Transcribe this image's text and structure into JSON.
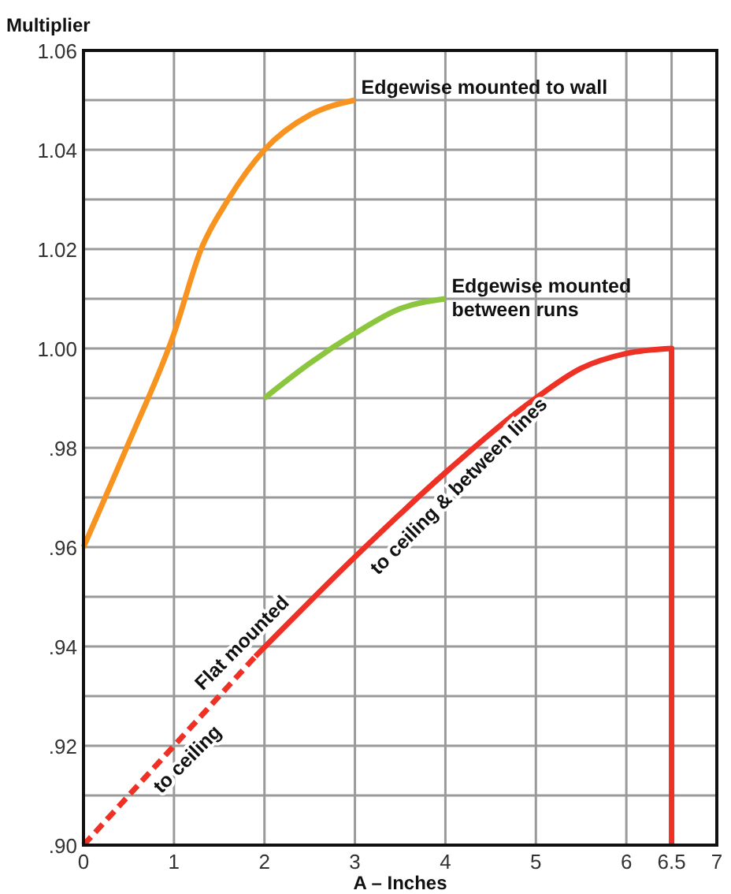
{
  "chart_data": {
    "type": "line",
    "xlabel": "A – Inches",
    "ylabel": "Multiplier",
    "xlim": [
      0,
      7
    ],
    "ylim": [
      0.9,
      1.06
    ],
    "xticks": [
      0,
      1,
      2,
      3,
      4,
      5,
      6,
      6.5,
      7
    ],
    "yticks": [
      {
        "value": 0.9,
        "label": ".90"
      },
      {
        "value": 0.91,
        "label": null
      },
      {
        "value": 0.92,
        "label": ".92"
      },
      {
        "value": 0.93,
        "label": null
      },
      {
        "value": 0.94,
        "label": ".94"
      },
      {
        "value": 0.95,
        "label": null
      },
      {
        "value": 0.96,
        "label": ".96"
      },
      {
        "value": 0.97,
        "label": null
      },
      {
        "value": 0.98,
        "label": ".98"
      },
      {
        "value": 0.99,
        "label": null
      },
      {
        "value": 1.0,
        "label": "1.00"
      },
      {
        "value": 1.01,
        "label": null
      },
      {
        "value": 1.02,
        "label": "1.02"
      },
      {
        "value": 1.03,
        "label": null
      },
      {
        "value": 1.04,
        "label": "1.04"
      },
      {
        "value": 1.05,
        "label": null
      },
      {
        "value": 1.06,
        "label": "1.06"
      }
    ],
    "grid": true,
    "series": [
      {
        "name": "Edgewise mounted to wall",
        "color": "#f7931e",
        "x": [
          0,
          0.5,
          1,
          1.3,
          1.6,
          2,
          2.5,
          3
        ],
        "values": [
          0.96,
          0.981,
          1.003,
          1.02,
          1.03,
          1.04,
          1.047,
          1.05
        ]
      },
      {
        "name": "Edgewise mounted between runs",
        "color": "#8cc63f",
        "x": [
          2,
          2.5,
          3,
          3.5,
          4
        ],
        "values": [
          0.99,
          0.997,
          1.003,
          1.008,
          1.01
        ]
      },
      {
        "color": "#ee3124",
        "line_style": "dashed",
        "x": [
          0,
          1,
          1.9
        ],
        "values": [
          0.9,
          0.92,
          0.938
        ]
      },
      {
        "color": "#ee3124",
        "line_style": "solid",
        "x": [
          1.9,
          3,
          4,
          5,
          5.5,
          6,
          6.5,
          6.5
        ],
        "values": [
          0.938,
          0.958,
          0.975,
          0.99,
          0.996,
          0.999,
          1.0,
          0.9
        ]
      }
    ],
    "annotations": [
      {
        "text": "to ceiling",
        "x": 1,
        "y": 0.92
      },
      {
        "text": "Flat mounted",
        "x": 1.9,
        "y": 0.938
      },
      {
        "text": "to ceiling & between lines",
        "x": 4,
        "y": 0.975
      }
    ]
  }
}
